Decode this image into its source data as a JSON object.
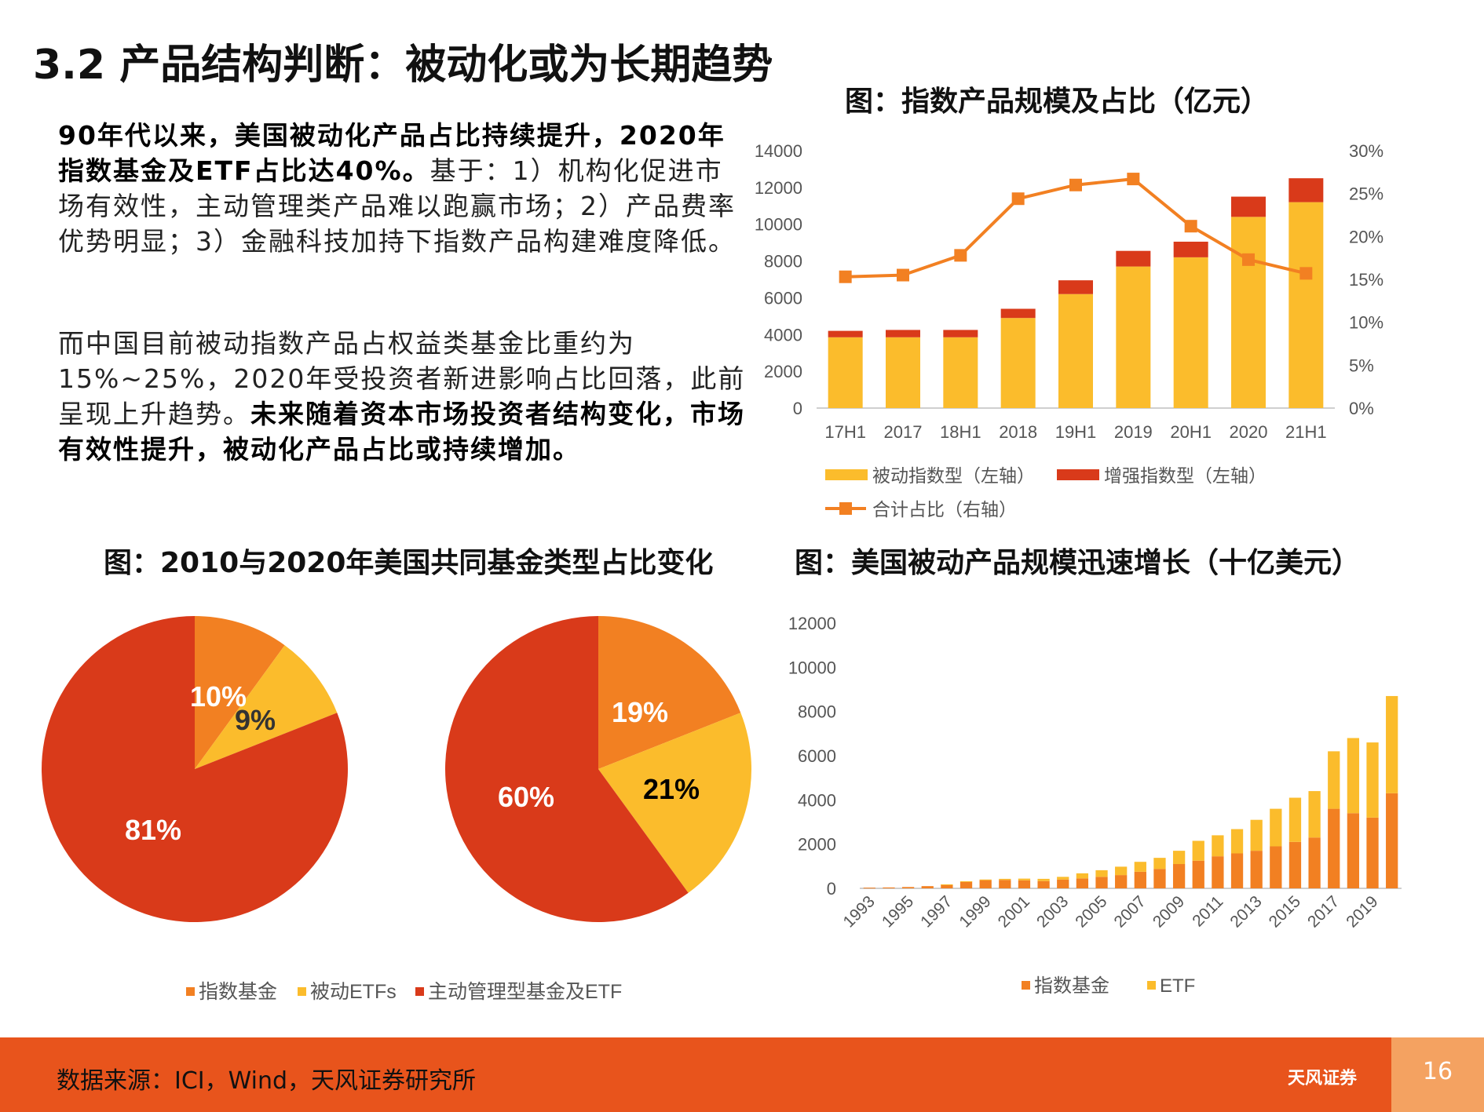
{
  "page": {
    "title": "3.2 产品结构判断：被动化或为长期趋势",
    "para1": {
      "bold": "90年代以来，美国被动化产品占比持续提升，2020年指数基金及ETF占比达40%。",
      "normal": "基于：1）机构化促进市场有效性，主动管理类产品难以跑赢市场；2）产品费率优势明显；3）金融科技加持下指数产品构建难度降低。"
    },
    "para2": {
      "normal": "而中国目前被动指数产品占权益类基金比重约为15%~25%，2020年受投资者新进影响占比回落，此前呈现上升趋势。",
      "bold": "未来随着资本市场投资者结构变化，市场有效性提升，被动化产品占比或持续增加。"
    },
    "footer": {
      "source": "数据来源：ICI，Wind，天风证券研究所",
      "brand": "天风证券",
      "page_number": "16"
    }
  },
  "chart_data": [
    {
      "type": "bar",
      "title": "图：指数产品规模及占比（亿元）",
      "categories": [
        "17H1",
        "2017",
        "18H1",
        "2018",
        "19H1",
        "2019",
        "20H1",
        "2020",
        "21H1"
      ],
      "stacked": true,
      "series": [
        {
          "name": "被动指数型（左轴）",
          "values": [
            3850,
            3850,
            3850,
            4900,
            6200,
            7700,
            8200,
            10400,
            11200
          ],
          "color": "#fbbc2c",
          "axis": "left"
        },
        {
          "name": "增强指数型（左轴）",
          "values": [
            350,
            400,
            400,
            500,
            750,
            850,
            850,
            1100,
            1300
          ],
          "color": "#d93a1a",
          "axis": "left"
        },
        {
          "name": "合计占比（右轴）",
          "type": "line",
          "values": [
            15.3,
            15.5,
            17.8,
            24.4,
            26.0,
            26.7,
            21.2,
            17.3,
            15.7
          ],
          "color": "#f28022",
          "axis": "right"
        }
      ],
      "y_left": {
        "min": 0,
        "max": 14000,
        "ticks": [
          "0",
          "2000",
          "4000",
          "6000",
          "8000",
          "10000",
          "12000",
          "14000"
        ]
      },
      "y_right": {
        "min": 0,
        "max": 30,
        "ticks": [
          "0%",
          "5%",
          "10%",
          "15%",
          "20%",
          "25%",
          "30%"
        ]
      },
      "legend_placement": "bottom"
    },
    {
      "type": "pie",
      "title": "图：2010与2020年美国共同基金类型占比变化",
      "labels": [
        "指数基金",
        "被动ETFs",
        "主动管理型基金及ETF"
      ],
      "colors": [
        "#f28022",
        "#fbbc2c",
        "#d93a1a"
      ],
      "pies": [
        {
          "year": "2010",
          "values": [
            10,
            9,
            81
          ],
          "value_labels": [
            "10%",
            "9%",
            "81%"
          ]
        },
        {
          "year": "2020",
          "values": [
            19,
            21,
            60
          ],
          "value_labels": [
            "19%",
            "21%",
            "60%"
          ]
        }
      ],
      "legend_placement": "bottom"
    },
    {
      "type": "bar",
      "title": "图：美国被动产品规模迅速增长（十亿美元）",
      "stacked": true,
      "x": [
        1993,
        1994,
        1995,
        1996,
        1997,
        1998,
        1999,
        2000,
        2001,
        2002,
        2003,
        2004,
        2005,
        2006,
        2007,
        2008,
        2009,
        2010,
        2011,
        2012,
        2013,
        2014,
        2015,
        2016,
        2017,
        2018,
        2019,
        2020
      ],
      "x_tick_labels": [
        "1993",
        "1995",
        "1997",
        "1999",
        "2001",
        "2003",
        "2005",
        "2007",
        "2009",
        "2011",
        "2013",
        "2015",
        "2017",
        "2019"
      ],
      "series": [
        {
          "name": "指数基金",
          "values": [
            30,
            40,
            60,
            100,
            170,
            300,
            370,
            380,
            360,
            330,
            400,
            450,
            520,
            600,
            750,
            880,
            1100,
            1250,
            1450,
            1580,
            1700,
            1900,
            2100,
            2300,
            3600,
            3400,
            3200,
            4300
          ],
          "color": "#f28022"
        },
        {
          "name": "ETF",
          "values": [
            0,
            0,
            0,
            0,
            10,
            20,
            30,
            50,
            80,
            100,
            120,
            230,
            300,
            380,
            450,
            500,
            600,
            900,
            950,
            1100,
            1400,
            1700,
            2000,
            2100,
            2600,
            3400,
            3400,
            4400
          ],
          "color": "#fbbc2c"
        }
      ],
      "y": {
        "min": 0,
        "max": 12000,
        "ticks": [
          "0",
          "2000",
          "4000",
          "6000",
          "8000",
          "10000",
          "12000"
        ]
      },
      "legend_placement": "bottom"
    }
  ]
}
